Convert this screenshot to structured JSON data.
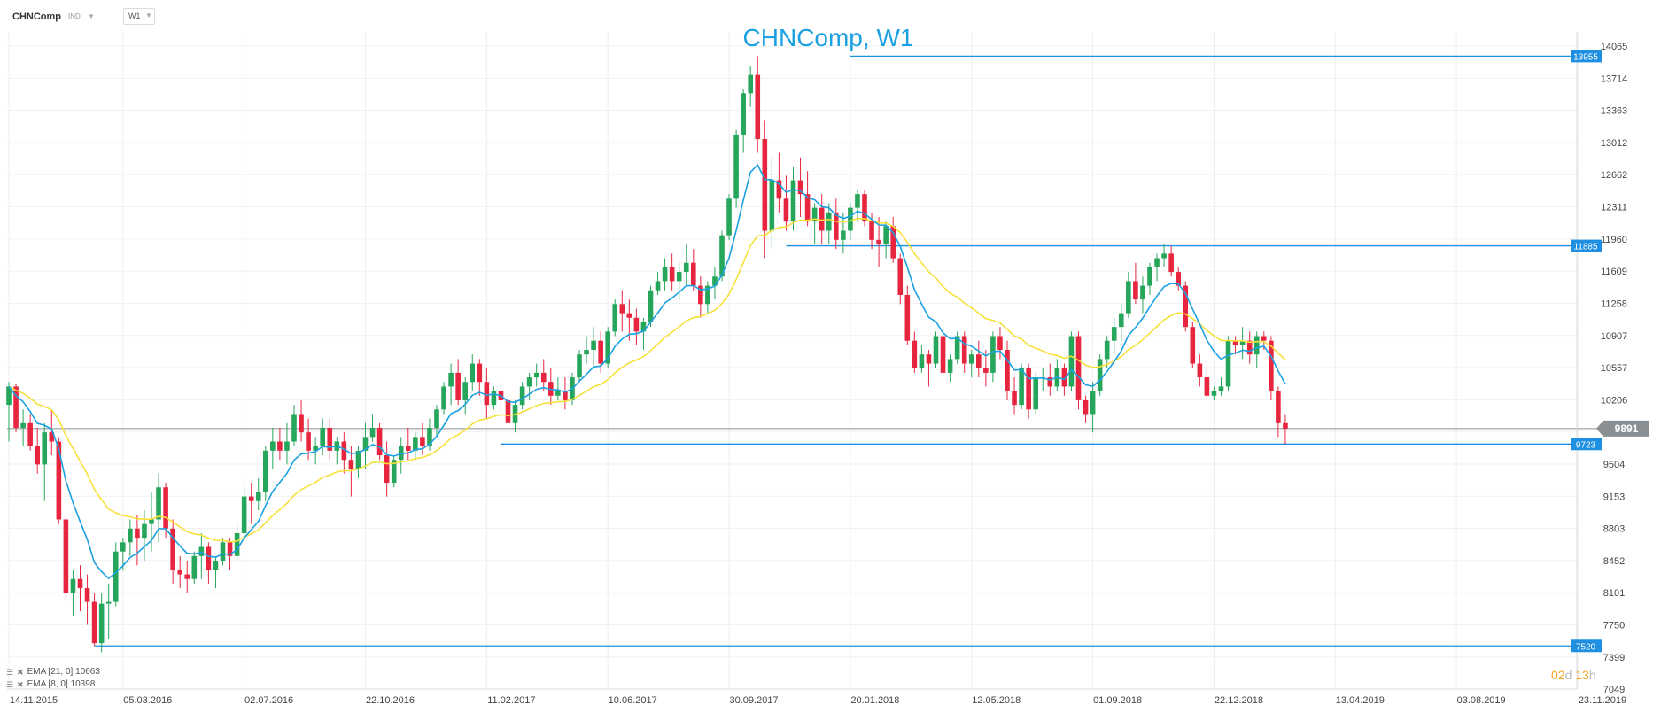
{
  "header": {
    "symbol": "CHNComp",
    "instrument_type": "IND",
    "timeframe": "W1"
  },
  "indicators": [
    {
      "label": "EMA [21, 0] 10663"
    },
    {
      "label": "EMA [8, 0] 10398"
    }
  ],
  "countdown": {
    "days": "02",
    "days_unit": "d",
    "hours": "13",
    "hours_unit": "h"
  },
  "colors": {
    "up": "#26a65b",
    "down": "#e8253e",
    "ema_fast": "#1ba1e2",
    "ema_slow": "#f7e03c",
    "level": "#1e8fe1",
    "title": "#1ba1e2",
    "current_price": "#8a8f93"
  },
  "chart_data": {
    "type": "candlestick",
    "title": "CHNComp, W1",
    "ylim": [
      7049,
      14240
    ],
    "y_ticks": [
      14065,
      13714,
      13363,
      13012,
      12662,
      12311,
      11960,
      11609,
      11258,
      10907,
      10557,
      10206,
      9855,
      9504,
      9153,
      8803,
      8452,
      8101,
      7750,
      7399,
      7049
    ],
    "x_tick_labels": [
      "14.11.2015",
      "05.03.2016",
      "02.07.2016",
      "22.10.2016",
      "11.02.2017",
      "10.06.2017",
      "30.09.2017",
      "20.01.2018",
      "12.05.2018",
      "01.09.2018",
      "22.12.2018",
      "13.04.2019",
      "03.08.2019",
      "23.11.2019"
    ],
    "x_tick_bars": [
      0,
      16,
      33,
      50,
      67,
      84,
      101,
      118,
      135,
      152,
      169,
      186,
      203,
      220
    ],
    "horizontal_levels": [
      {
        "value": 13955,
        "label": "13955",
        "from_bar": 118
      },
      {
        "value": 11885,
        "label": "11885",
        "from_bar": 109
      },
      {
        "value": 9723,
        "label": "9723",
        "from_bar": 69
      },
      {
        "value": 7520,
        "label": "7520",
        "from_bar": 12
      }
    ],
    "current_price": {
      "value": 9891,
      "label": "9891"
    },
    "candles": [
      [
        10150,
        10400,
        9750,
        10350
      ],
      [
        10350,
        10380,
        9850,
        9900
      ],
      [
        9900,
        10100,
        9700,
        9950
      ],
      [
        9950,
        10050,
        9650,
        9700
      ],
      [
        9700,
        9900,
        9400,
        9500
      ],
      [
        9500,
        9950,
        9100,
        9850
      ],
      [
        9850,
        10100,
        9600,
        9750
      ],
      [
        9750,
        9800,
        8850,
        8900
      ],
      [
        8900,
        8950,
        8000,
        8100
      ],
      [
        8100,
        8350,
        7850,
        8250
      ],
      [
        8250,
        8400,
        7900,
        8150
      ],
      [
        8150,
        8300,
        7750,
        8000
      ],
      [
        8000,
        8100,
        7520,
        7550
      ],
      [
        7550,
        8100,
        7450,
        7980
      ],
      [
        7980,
        8200,
        7600,
        8000
      ],
      [
        8000,
        8650,
        7950,
        8550
      ],
      [
        8550,
        8700,
        8350,
        8650
      ],
      [
        8650,
        8900,
        8500,
        8800
      ],
      [
        8800,
        8950,
        8400,
        8700
      ],
      [
        8700,
        9000,
        8450,
        8850
      ],
      [
        8850,
        9200,
        8550,
        8900
      ],
      [
        8900,
        9400,
        8650,
        9250
      ],
      [
        9250,
        9300,
        8700,
        8800
      ],
      [
        8800,
        8900,
        8200,
        8350
      ],
      [
        8350,
        8500,
        8150,
        8300
      ],
      [
        8300,
        8450,
        8100,
        8250
      ],
      [
        8250,
        8550,
        8200,
        8500
      ],
      [
        8500,
        8750,
        8250,
        8600
      ],
      [
        8600,
        8650,
        8200,
        8350
      ],
      [
        8350,
        8500,
        8150,
        8450
      ],
      [
        8450,
        8700,
        8400,
        8650
      ],
      [
        8650,
        8700,
        8350,
        8500
      ],
      [
        8500,
        8850,
        8450,
        8750
      ],
      [
        8750,
        9250,
        8700,
        9150
      ],
      [
        9150,
        9300,
        8850,
        9100
      ],
      [
        9100,
        9350,
        9000,
        9200
      ],
      [
        9200,
        9700,
        9100,
        9650
      ],
      [
        9650,
        9900,
        9450,
        9750
      ],
      [
        9750,
        9900,
        9550,
        9650
      ],
      [
        9650,
        9950,
        9500,
        9750
      ],
      [
        9750,
        10150,
        9700,
        10050
      ],
      [
        10050,
        10200,
        9750,
        9850
      ],
      [
        9850,
        10000,
        9550,
        9650
      ],
      [
        9650,
        9800,
        9500,
        9700
      ],
      [
        9700,
        10000,
        9600,
        9900
      ],
      [
        9900,
        10000,
        9550,
        9650
      ],
      [
        9650,
        9800,
        9500,
        9750
      ],
      [
        9750,
        9850,
        9400,
        9550
      ],
      [
        9550,
        9700,
        9150,
        9450
      ],
      [
        9450,
        9700,
        9350,
        9650
      ],
      [
        9650,
        9950,
        9450,
        9800
      ],
      [
        9800,
        10050,
        9750,
        9900
      ],
      [
        9900,
        9950,
        9550,
        9600
      ],
      [
        9600,
        9750,
        9150,
        9300
      ],
      [
        9300,
        9600,
        9250,
        9550
      ],
      [
        9550,
        9800,
        9400,
        9700
      ],
      [
        9700,
        9900,
        9550,
        9650
      ],
      [
        9650,
        9850,
        9550,
        9800
      ],
      [
        9800,
        9950,
        9600,
        9700
      ],
      [
        9700,
        10000,
        9650,
        9900
      ],
      [
        9900,
        10150,
        9800,
        10100
      ],
      [
        10100,
        10400,
        10050,
        10350
      ],
      [
        10350,
        10600,
        10150,
        10500
      ],
      [
        10500,
        10650,
        10150,
        10200
      ],
      [
        10200,
        10450,
        10050,
        10400
      ],
      [
        10400,
        10700,
        10300,
        10600
      ],
      [
        10600,
        10650,
        10250,
        10400
      ],
      [
        10400,
        10550,
        10000,
        10150
      ],
      [
        10150,
        10350,
        10100,
        10300
      ],
      [
        10300,
        10400,
        10050,
        10200
      ],
      [
        10200,
        10300,
        9850,
        9950
      ],
      [
        9950,
        10200,
        9850,
        10150
      ],
      [
        10150,
        10400,
        10100,
        10350
      ],
      [
        10350,
        10500,
        10200,
        10450
      ],
      [
        10450,
        10600,
        10350,
        10500
      ],
      [
        10500,
        10650,
        10300,
        10400
      ],
      [
        10400,
        10550,
        10150,
        10250
      ],
      [
        10250,
        10450,
        10200,
        10300
      ],
      [
        10300,
        10450,
        10100,
        10200
      ],
      [
        10200,
        10500,
        10150,
        10450
      ],
      [
        10450,
        10750,
        10400,
        10700
      ],
      [
        10700,
        10900,
        10600,
        10750
      ],
      [
        10750,
        11000,
        10550,
        10850
      ],
      [
        10850,
        10950,
        10500,
        10600
      ],
      [
        10600,
        11000,
        10550,
        10950
      ],
      [
        10950,
        11300,
        10900,
        11250
      ],
      [
        11250,
        11400,
        10950,
        11150
      ],
      [
        11150,
        11300,
        10850,
        11100
      ],
      [
        11100,
        11200,
        10800,
        10950
      ],
      [
        10950,
        11100,
        10750,
        11050
      ],
      [
        11050,
        11450,
        11000,
        11400
      ],
      [
        11400,
        11600,
        11350,
        11500
      ],
      [
        11500,
        11750,
        11400,
        11650
      ],
      [
        11650,
        11800,
        11400,
        11500
      ],
      [
        11500,
        11700,
        11300,
        11600
      ],
      [
        11600,
        11900,
        11450,
        11700
      ],
      [
        11700,
        11850,
        11400,
        11450
      ],
      [
        11450,
        11550,
        11100,
        11250
      ],
      [
        11250,
        11500,
        11150,
        11450
      ],
      [
        11450,
        11650,
        11300,
        11550
      ],
      [
        11550,
        12050,
        11500,
        12000
      ],
      [
        12000,
        12450,
        11950,
        12400
      ],
      [
        12400,
        13150,
        12300,
        13100
      ],
      [
        13100,
        13600,
        12900,
        13550
      ],
      [
        13550,
        13850,
        13400,
        13750
      ],
      [
        13750,
        13955,
        12900,
        13050
      ],
      [
        13050,
        13250,
        11750,
        12050
      ],
      [
        12050,
        12850,
        11850,
        12600
      ],
      [
        12600,
        12900,
        12250,
        12400
      ],
      [
        12400,
        12650,
        12050,
        12150
      ],
      [
        12150,
        12750,
        12050,
        12600
      ],
      [
        12600,
        12850,
        12200,
        12450
      ],
      [
        12450,
        12700,
        12100,
        12150
      ],
      [
        12150,
        12350,
        11900,
        12300
      ],
      [
        12300,
        12450,
        11900,
        12050
      ],
      [
        12050,
        12350,
        11900,
        12250
      ],
      [
        12250,
        12400,
        11850,
        11950
      ],
      [
        11950,
        12250,
        11800,
        12050
      ],
      [
        12050,
        12350,
        11950,
        12300
      ],
      [
        12300,
        12500,
        12150,
        12450
      ],
      [
        12450,
        12500,
        12100,
        12150
      ],
      [
        12150,
        12250,
        11850,
        11950
      ],
      [
        11950,
        12200,
        11650,
        11900
      ],
      [
        11900,
        12150,
        11750,
        12100
      ],
      [
        12100,
        12200,
        11700,
        11750
      ],
      [
        11750,
        11800,
        11250,
        11350
      ],
      [
        11350,
        11450,
        10800,
        10850
      ],
      [
        10850,
        10950,
        10500,
        10550
      ],
      [
        10550,
        10800,
        10500,
        10700
      ],
      [
        10700,
        10750,
        10350,
        10600
      ],
      [
        10600,
        10950,
        10550,
        10900
      ],
      [
        10900,
        11000,
        10450,
        10500
      ],
      [
        10500,
        10700,
        10400,
        10650
      ],
      [
        10650,
        10950,
        10600,
        10900
      ],
      [
        10900,
        10950,
        10500,
        10600
      ],
      [
        10600,
        10750,
        10450,
        10700
      ],
      [
        10700,
        10850,
        10450,
        10550
      ],
      [
        10550,
        10750,
        10350,
        10500
      ],
      [
        10500,
        10950,
        10400,
        10900
      ],
      [
        10900,
        11000,
        10650,
        10750
      ],
      [
        10750,
        10850,
        10200,
        10300
      ],
      [
        10300,
        10450,
        10050,
        10150
      ],
      [
        10150,
        10600,
        10100,
        10550
      ],
      [
        10550,
        10600,
        10000,
        10100
      ],
      [
        10100,
        10500,
        10050,
        10450
      ],
      [
        10450,
        10550,
        10300,
        10450
      ],
      [
        10450,
        10600,
        10250,
        10350
      ],
      [
        10350,
        10650,
        10300,
        10550
      ],
      [
        10550,
        10600,
        10250,
        10350
      ],
      [
        10350,
        10950,
        10300,
        10900
      ],
      [
        10900,
        10950,
        10100,
        10200
      ],
      [
        10200,
        10250,
        9950,
        10050
      ],
      [
        10050,
        10400,
        9850,
        10300
      ],
      [
        10300,
        10700,
        10250,
        10650
      ],
      [
        10650,
        10900,
        10550,
        10850
      ],
      [
        10850,
        11100,
        10700,
        11000
      ],
      [
        11000,
        11250,
        10850,
        11150
      ],
      [
        11150,
        11600,
        11100,
        11500
      ],
      [
        11500,
        11700,
        11250,
        11300
      ],
      [
        11300,
        11550,
        11150,
        11450
      ],
      [
        11450,
        11700,
        11350,
        11650
      ],
      [
        11650,
        11800,
        11500,
        11750
      ],
      [
        11750,
        11900,
        11650,
        11800
      ],
      [
        11800,
        11885,
        11550,
        11600
      ],
      [
        11600,
        11650,
        11400,
        11450
      ],
      [
        11450,
        11500,
        10950,
        11000
      ],
      [
        11000,
        11050,
        10550,
        10600
      ],
      [
        10600,
        10700,
        10350,
        10450
      ],
      [
        10450,
        10550,
        10200,
        10250
      ],
      [
        10250,
        10350,
        10200,
        10300
      ],
      [
        10300,
        10450,
        10250,
        10350
      ],
      [
        10350,
        10900,
        10300,
        10850
      ],
      [
        10850,
        10900,
        10700,
        10800
      ],
      [
        10800,
        11000,
        10650,
        10850
      ],
      [
        10850,
        10950,
        10600,
        10700
      ],
      [
        10700,
        10950,
        10550,
        10900
      ],
      [
        10900,
        10950,
        10750,
        10850
      ],
      [
        10850,
        10900,
        10200,
        10300
      ],
      [
        10300,
        10350,
        9800,
        9950
      ],
      [
        9950,
        10050,
        9723,
        9891
      ]
    ]
  }
}
